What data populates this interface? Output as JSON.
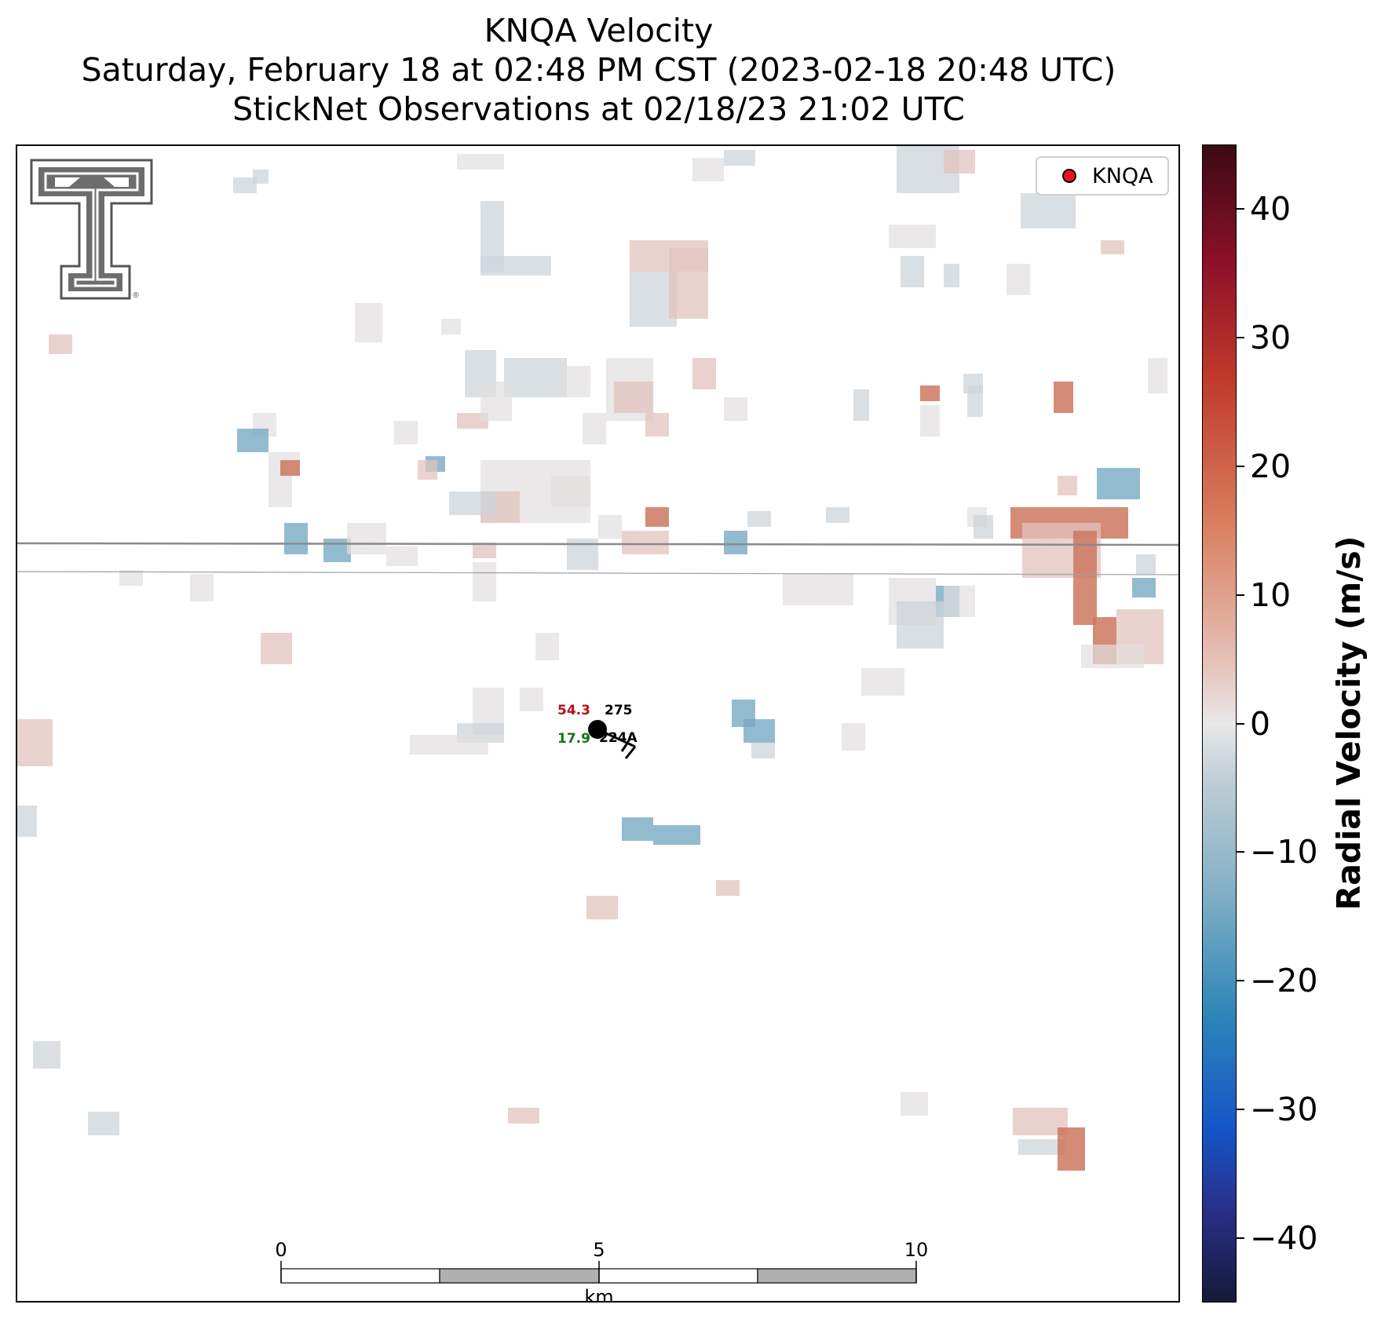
{
  "title": {
    "line1": "KNQA Velocity",
    "line2": "Saturday, February 18 at 02:48 PM CST (2023-02-18 20:48 UTC)",
    "line3": "StickNet Observations at 02/18/23 21:02 UTC"
  },
  "legend": {
    "label": "KNQA",
    "marker_color": "#e8141c"
  },
  "logo": {
    "name": "Texas Tech Double T",
    "symbol": "®"
  },
  "station": {
    "temperature": "54.3",
    "dewpoint": "17.9",
    "pressure": "275",
    "id": "224A",
    "temperature_color": "#b5121b",
    "dewpoint_color": "#137313"
  },
  "scale_bar": {
    "labels": [
      "0",
      "5",
      "10"
    ],
    "unit": "km"
  },
  "colorbar": {
    "label": "Radial Velocity (m/s)",
    "range": [
      -45,
      45
    ],
    "ticks": [
      "40",
      "30",
      "20",
      "10",
      "0",
      "−10",
      "−20",
      "−30",
      "−40"
    ],
    "colormap": [
      "#3b0a14",
      "#8b1028",
      "#c0392b",
      "#d98060",
      "#e6c3bb",
      "#e8e8e8",
      "#bfcdd6",
      "#7faec4",
      "#2f86b8",
      "#1455c8",
      "#141a38"
    ]
  },
  "chart_data": {
    "type": "heatmap",
    "title": "KNQA Velocity",
    "variable": "Radial Velocity (m/s)",
    "value_range": [
      -45,
      45
    ],
    "observation_station": "224A"
  }
}
